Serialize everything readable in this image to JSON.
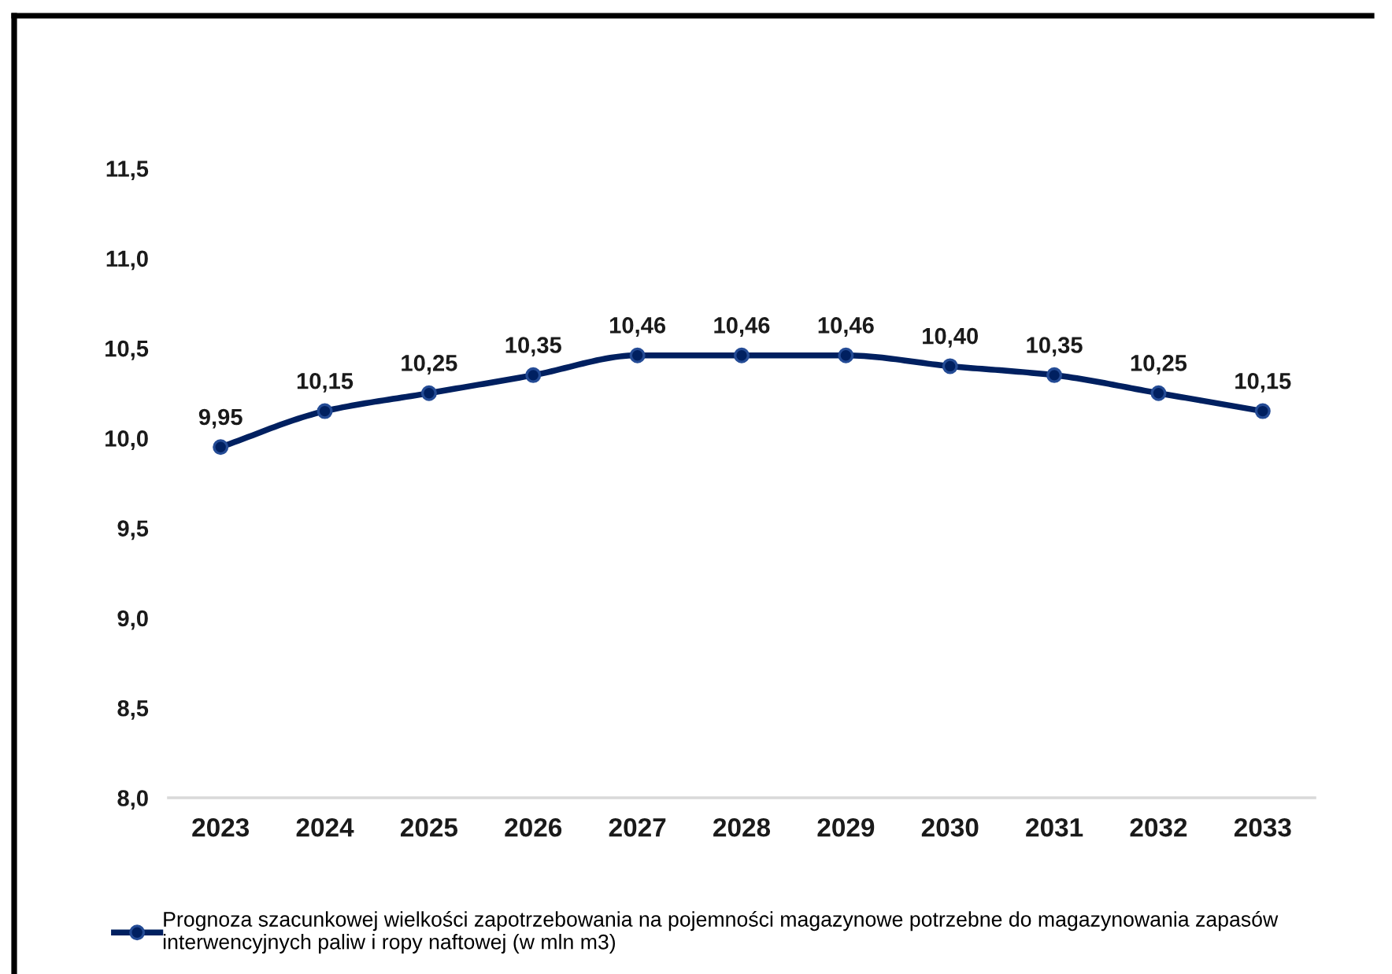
{
  "chart_data": {
    "type": "line",
    "categories": [
      "2023",
      "2024",
      "2025",
      "2026",
      "2027",
      "2028",
      "2029",
      "2030",
      "2031",
      "2032",
      "2033"
    ],
    "series": [
      {
        "name": "Prognoza szacunkowej wielkości zapotrzebowania na pojemności magazynowe potrzebne do magazynowania zapasów interwencyjnych paliw i ropy naftowej (w mln m3)",
        "color": "#002060",
        "values": [
          9.95,
          10.15,
          10.25,
          10.35,
          10.46,
          10.46,
          10.46,
          10.4,
          10.35,
          10.25,
          10.15
        ],
        "value_labels": [
          "9,95",
          "10,15",
          "10,25",
          "10,35",
          "10,46",
          "10,46",
          "10,46",
          "10,40",
          "10,35",
          "10,25",
          "10,15"
        ]
      }
    ],
    "ylim": [
      8,
      11.5
    ],
    "yticks": [
      {
        "value": 8,
        "label": "8,0"
      },
      {
        "value": 8.5,
        "label": "8,5"
      },
      {
        "value": 9,
        "label": "9,0"
      },
      {
        "value": 9.5,
        "label": "9,5"
      },
      {
        "value": 10,
        "label": "10,0"
      },
      {
        "value": 10.5,
        "label": "10,5"
      },
      {
        "value": 11,
        "label": "11,0"
      },
      {
        "value": 11.5,
        "label": "11,5"
      }
    ],
    "legend": "bottom",
    "marker": "circle",
    "line_style": "solid"
  }
}
